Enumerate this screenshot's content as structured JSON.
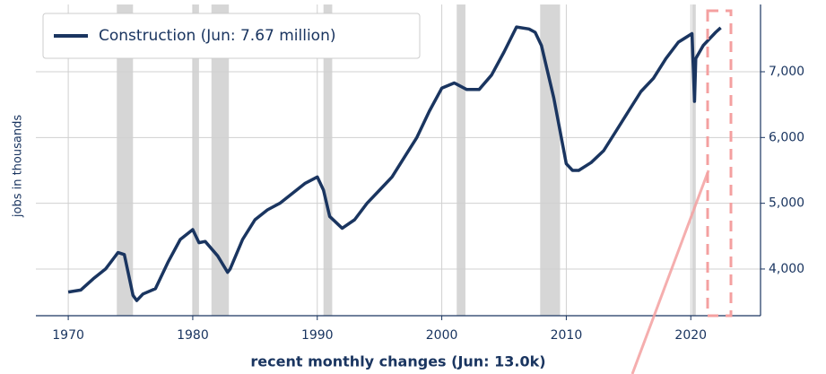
{
  "chart_data": {
    "type": "line",
    "x_label": "recent monthly changes (Jun: 13.0k)",
    "y_label": "jobs in thousands",
    "x": [
      1970,
      1971,
      1972,
      1973,
      1974,
      1974.5,
      1975.2,
      1975.5,
      1976,
      1977,
      1978,
      1979,
      1980,
      1980.5,
      1981,
      1982,
      1982.8,
      1983,
      1984,
      1985,
      1986,
      1987,
      1988,
      1989,
      1990,
      1990.5,
      1991,
      1992,
      1993,
      1994,
      1995,
      1996,
      1997,
      1998,
      1999,
      2000,
      2001,
      2002,
      2003,
      2004,
      2005,
      2006,
      2007,
      2007.5,
      2008,
      2009,
      2010,
      2010.5,
      2011,
      2012,
      2013,
      2014,
      2015,
      2016,
      2017,
      2018,
      2019,
      2020.1,
      2020.3,
      2020.4,
      2021,
      2022,
      2022.4
    ],
    "series": [
      {
        "name": "Construction (Jun: 7.67 million)",
        "color": "#1a3560",
        "values": [
          3650,
          3680,
          3850,
          4000,
          4250,
          4220,
          3600,
          3520,
          3620,
          3700,
          4100,
          4450,
          4600,
          4400,
          4420,
          4200,
          3950,
          4000,
          4450,
          4750,
          4900,
          5000,
          5150,
          5300,
          5400,
          5200,
          4800,
          4620,
          4750,
          5000,
          5200,
          5400,
          5700,
          6000,
          6400,
          6750,
          6830,
          6730,
          6730,
          6950,
          7300,
          7680,
          7650,
          7600,
          7400,
          6600,
          5600,
          5500,
          5500,
          5620,
          5800,
          6100,
          6400,
          6700,
          6900,
          7200,
          7450,
          7580,
          6550,
          7200,
          7400,
          7600,
          7670
        ]
      }
    ],
    "shaded_periods": [
      [
        1973.9,
        1975.2
      ],
      [
        1980.0,
        1980.5
      ],
      [
        1981.5,
        1982.9
      ],
      [
        1990.5,
        1991.2
      ],
      [
        2001.2,
        2001.9
      ],
      [
        2007.9,
        2009.5
      ],
      [
        2020.1,
        2020.4
      ]
    ],
    "shade_color": "#d6d6d6",
    "xlim": [
      1967.4,
      2025.6
    ],
    "ylim": [
      3290,
      8023
    ],
    "xticks": [
      1970,
      1980,
      1990,
      2000,
      2010,
      2020
    ],
    "yticks": [
      {
        "value": 4000,
        "label": "4,000"
      },
      {
        "value": 5000,
        "label": "5,000"
      },
      {
        "value": 6000,
        "label": "6,000"
      },
      {
        "value": 7000,
        "label": "7,000"
      }
    ],
    "y_axis_side": "right",
    "grid": true,
    "legend": "upper left"
  }
}
